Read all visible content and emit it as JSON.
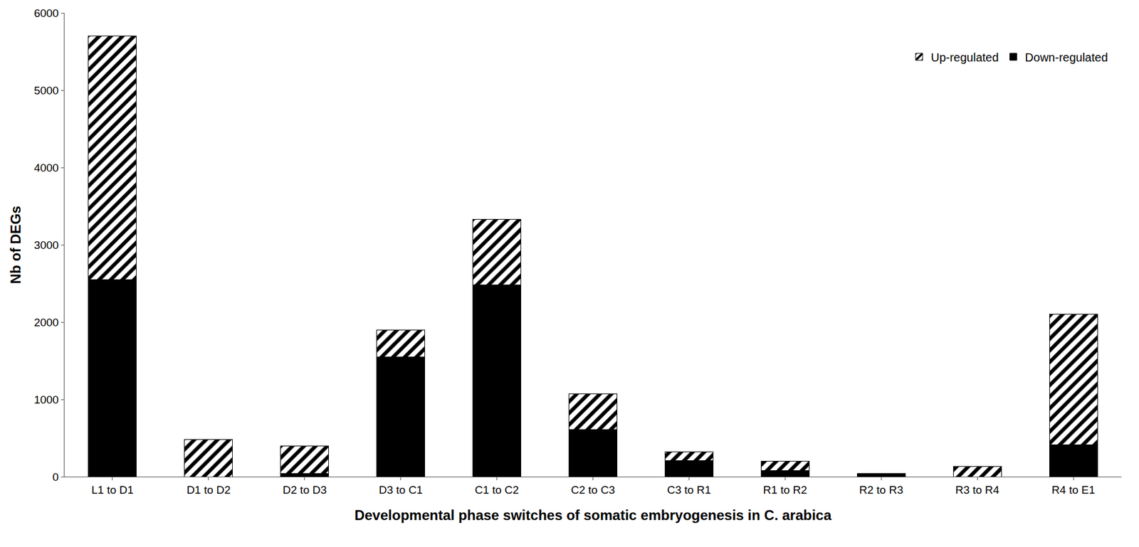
{
  "chart_data": {
    "type": "bar",
    "stacked": true,
    "categories": [
      "L1 to D1",
      "D1 to D2",
      "D2 to D3",
      "D3 to C1",
      "C1 to C2",
      "C2 to C3",
      "C3 to R1",
      "R1 to R2",
      "R2 to R3",
      "R3 to R4",
      "R4 to E1"
    ],
    "series": [
      {
        "name": "Down-regulated",
        "color": "#000000",
        "marker": "solid",
        "values": [
          2550,
          0,
          40,
          1550,
          2480,
          610,
          210,
          80,
          40,
          0,
          410
        ]
      },
      {
        "name": "Up-regulated",
        "color": "#000000",
        "marker": "hatched",
        "values": [
          3150,
          480,
          360,
          350,
          850,
          460,
          110,
          120,
          0,
          130,
          1690
        ]
      }
    ],
    "x_label": "Developmental phase switches of somatic embryogenesis in C. arabica",
    "y_label": "Nb of DEGs",
    "ylim": [
      0,
      6000
    ],
    "yticks": [
      0,
      1000,
      2000,
      3000,
      4000,
      5000,
      6000
    ],
    "grid": false,
    "legend": "top right"
  }
}
